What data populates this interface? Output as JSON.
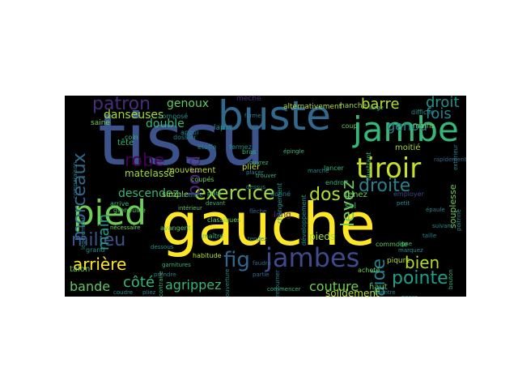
{
  "word_cloud": {
    "background": "#000000",
    "words": [
      {
        "text": "gauche",
        "color": "#fde725",
        "dir": "h"
      },
      {
        "text": "tissu",
        "color": "#3b528b",
        "dir": "h"
      },
      {
        "text": "buste",
        "color": "#31688e",
        "dir": "h"
      },
      {
        "text": "jambe",
        "color": "#35b779",
        "dir": "h"
      },
      {
        "text": "pied",
        "color": "#6ece58",
        "dir": "h"
      },
      {
        "text": "tiroir",
        "color": "#c8e020",
        "dir": "h"
      },
      {
        "text": "jambes",
        "color": "#3e4a89",
        "dir": "h"
      },
      {
        "text": "exercice",
        "color": "#a0da39",
        "dir": "h"
      },
      {
        "text": "milieu",
        "color": "#3b528b",
        "dir": "h"
      },
      {
        "text": "patron",
        "color": "#472d7b",
        "dir": "h"
      },
      {
        "text": "morceaux",
        "color": "#31688e",
        "dir": "v"
      },
      {
        "text": "robe",
        "color": "#440154",
        "dir": "h"
      },
      {
        "text": "bord",
        "color": "#482878",
        "dir": "v"
      },
      {
        "text": "droite",
        "color": "#26828e",
        "dir": "h"
      },
      {
        "text": "fig",
        "color": "#31688e",
        "dir": "h"
      },
      {
        "text": "dos",
        "color": "#b5de2b",
        "dir": "h"
      },
      {
        "text": "levez",
        "color": "#6ece58",
        "dir": "v"
      },
      {
        "text": "arrière",
        "color": "#fde725",
        "dir": "h"
      },
      {
        "text": "bien",
        "color": "#b5de2b",
        "dir": "h"
      },
      {
        "text": "pointe",
        "color": "#1f9e89",
        "dir": "h"
      },
      {
        "text": "aide",
        "color": "#26828e",
        "dir": "v"
      },
      {
        "text": "main",
        "color": "#1f9e89",
        "dir": "v"
      },
      {
        "text": "barre",
        "color": "#b5de2b",
        "dir": "h"
      },
      {
        "text": "droit",
        "color": "#21918c",
        "dir": "h"
      },
      {
        "text": "fois",
        "color": "#26828e",
        "dir": "h"
      },
      {
        "text": "genou",
        "color": "#26828e",
        "dir": "h"
      },
      {
        "text": "côté",
        "color": "#35b779",
        "dir": "h"
      },
      {
        "text": "agrippez",
        "color": "#35b779",
        "dir": "h"
      },
      {
        "text": "couture",
        "color": "#6ece58",
        "dir": "h"
      },
      {
        "text": "bande",
        "color": "#5ec962",
        "dir": "h"
      },
      {
        "text": "descendez",
        "color": "#35b779",
        "dir": "h"
      },
      {
        "text": "danseuses",
        "color": "#a0da39",
        "dir": "h"
      },
      {
        "text": "genoux",
        "color": "#5ec962",
        "dir": "h"
      },
      {
        "text": "double",
        "color": "#35b779",
        "dir": "h"
      },
      {
        "text": "matelassé",
        "color": "#a0da39",
        "dir": "h"
      },
      {
        "text": "plier",
        "color": "#c8e020",
        "dir": "h"
      },
      {
        "text": "solidement",
        "color": "#b5de2b",
        "dir": "h"
      },
      {
        "text": "moitié",
        "color": "#a0da39",
        "dir": "h"
      },
      {
        "text": "souplesse",
        "color": "#6ece58",
        "dir": "v"
      },
      {
        "text": "tenez",
        "color": "#6ece58",
        "dir": "h"
      },
      {
        "text": "pieds",
        "color": "#a0da39",
        "dir": "h"
      },
      {
        "text": "haut",
        "color": "#5ec962",
        "dir": "h"
      },
      {
        "text": "long",
        "color": "#482878",
        "dir": "h"
      },
      {
        "text": "sol",
        "color": "#35b779",
        "dir": "h"
      },
      {
        "text": "mouvement",
        "color": "#b5de2b",
        "dir": "h"
      },
      {
        "text": "simple",
        "color": "#a0da39",
        "dir": "h"
      },
      {
        "text": "tête",
        "color": "#35b779",
        "dir": "h"
      },
      {
        "text": "talon",
        "color": "#5ec962",
        "dir": "h"
      },
      {
        "text": "grenouille",
        "color": "#5ec962",
        "dir": "h"
      },
      {
        "text": "piqure",
        "color": "#b5de2b",
        "dir": "h"
      },
      {
        "text": "employer",
        "color": "#3e4a89",
        "dir": "h"
      },
      {
        "text": "alternativement",
        "color": "#b5de2b",
        "dir": "h"
      },
      {
        "text": "hanche",
        "color": "#a0da39",
        "dir": "h"
      },
      {
        "text": "mèche",
        "color": "#482878",
        "dir": "h"
      },
      {
        "text": "lapin",
        "color": "#21918c",
        "dir": "h"
      },
      {
        "text": "saine",
        "color": "#6ece58",
        "dir": "h"
      },
      {
        "text": "coupés",
        "color": "#6ece58",
        "dir": "h"
      },
      {
        "text": "arrive",
        "color": "#35b779",
        "dir": "h"
      },
      {
        "text": "classiques",
        "color": "#6ece58",
        "dir": "h"
      },
      {
        "text": "avangent",
        "color": "#5ec962",
        "dir": "h"
      },
      {
        "text": "habitude",
        "color": "#b5de2b",
        "dir": "h"
      },
      {
        "text": "composé",
        "color": "#21918c",
        "dir": "h"
      },
      {
        "text": "étoffe",
        "color": "#26828e",
        "dir": "h"
      },
      {
        "text": "fermez",
        "color": "#21918c",
        "dir": "h"
      },
      {
        "text": "lancer",
        "color": "#35b779",
        "dir": "h"
      },
      {
        "text": "donné",
        "color": "#26828e",
        "dir": "h"
      },
      {
        "text": "commode",
        "color": "#5ec962",
        "dir": "h"
      },
      {
        "text": "acheté",
        "color": "#6ece58",
        "dir": "h"
      },
      {
        "text": "endroit",
        "color": "#35b779",
        "dir": "h"
      },
      {
        "text": "maître",
        "color": "#35b779",
        "dir": "h"
      },
      {
        "text": "grand",
        "color": "#21918c",
        "dir": "h"
      },
      {
        "text": "dossier",
        "color": "#26828e",
        "dir": "h"
      },
      {
        "text": "coup",
        "color": "#5ec962",
        "dir": "h"
      },
      {
        "text": "mains",
        "color": "#6ece58",
        "dir": "h"
      },
      {
        "text": "difficile",
        "color": "#21918c",
        "dir": "h"
      },
      {
        "text": "bras",
        "color": "#35b779",
        "dir": "h"
      },
      {
        "text": "appui",
        "color": "#26828e",
        "dir": "h"
      },
      {
        "text": "coin",
        "color": "#35b779",
        "dir": "h"
      },
      {
        "text": "changement",
        "color": "#21918c",
        "dir": "v"
      },
      {
        "text": "illustrant",
        "color": "#35b779",
        "dir": "v"
      },
      {
        "text": "développement",
        "color": "#21918c",
        "dir": "v"
      },
      {
        "text": "comparaison",
        "color": "#26828e",
        "dir": "v"
      },
      {
        "text": "garnitures",
        "color": "#35b779",
        "dir": "h"
      },
      {
        "text": "flèche",
        "color": "#31688e",
        "dir": "h"
      },
      {
        "text": "commencer",
        "color": "#35b779",
        "dir": "h"
      },
      {
        "text": "trouver",
        "color": "#35b779",
        "dir": "h"
      },
      {
        "text": "propose",
        "color": "#21918c",
        "dir": "h"
      },
      {
        "text": "large",
        "color": "#5ec962",
        "dir": "h"
      },
      {
        "text": "dessus",
        "color": "#26828e",
        "dir": "h"
      },
      {
        "text": "placer",
        "color": "#26828e",
        "dir": "h"
      },
      {
        "text": "marquez",
        "color": "#21918c",
        "dir": "h"
      },
      {
        "text": "faudra",
        "color": "#31688e",
        "dir": "h"
      },
      {
        "text": "forme",
        "color": "#26828e",
        "dir": "h"
      },
      {
        "text": "rapidement",
        "color": "#31688e",
        "dir": "h"
      },
      {
        "text": "prendre",
        "color": "#26828e",
        "dir": "h"
      },
      {
        "text": "intérieur",
        "color": "#5ec962",
        "dir": "h"
      },
      {
        "text": "nécessaire",
        "color": "#6ece58",
        "dir": "h"
      },
      {
        "text": "dessous",
        "color": "#21918c",
        "dir": "h"
      },
      {
        "text": "tendez",
        "color": "#26828e",
        "dir": "h"
      },
      {
        "text": "devant",
        "color": "#35b779",
        "dir": "h"
      },
      {
        "text": "petit",
        "color": "#21918c",
        "dir": "h"
      },
      {
        "text": "plate",
        "color": "#35b779",
        "dir": "h"
      },
      {
        "text": "partie",
        "color": "#31688e",
        "dir": "h"
      },
      {
        "text": "taille",
        "color": "#26828e",
        "dir": "h"
      },
      {
        "text": "suivant",
        "color": "#21918c",
        "dir": "h"
      },
      {
        "text": "épaule",
        "color": "#26828e",
        "dir": "h"
      },
      {
        "text": "ouvrez",
        "color": "#35b779",
        "dir": "h"
      },
      {
        "text": "coudre",
        "color": "#21918c",
        "dir": "h"
      },
      {
        "text": "pliez",
        "color": "#26828e",
        "dir": "h"
      },
      {
        "text": "ensemble",
        "color": "#21918c",
        "dir": "h"
      },
      {
        "text": "ligne",
        "color": "#35b779",
        "dir": "h"
      },
      {
        "text": "ventre",
        "color": "#26828e",
        "dir": "h"
      },
      {
        "text": "poser",
        "color": "#21918c",
        "dir": "h"
      },
      {
        "text": "doublure",
        "color": "#26828e",
        "dir": "h"
      },
      {
        "text": "épingle",
        "color": "#35b779",
        "dir": "h"
      },
      {
        "text": "marche",
        "color": "#21918c",
        "dir": "h"
      },
      {
        "text": "légèrement",
        "color": "#26828e",
        "dir": "v"
      },
      {
        "text": "bouton",
        "color": "#35b779",
        "dir": "v"
      },
      {
        "text": "poitrine",
        "color": "#21918c",
        "dir": "v"
      },
      {
        "text": "retourner",
        "color": "#26828e",
        "dir": "v"
      },
      {
        "text": "contraire",
        "color": "#35b779",
        "dir": "v"
      },
      {
        "text": "ouverture",
        "color": "#21918c",
        "dir": "v"
      },
      {
        "text": "extérieur",
        "color": "#26828e",
        "dir": "v"
      }
    ]
  }
}
